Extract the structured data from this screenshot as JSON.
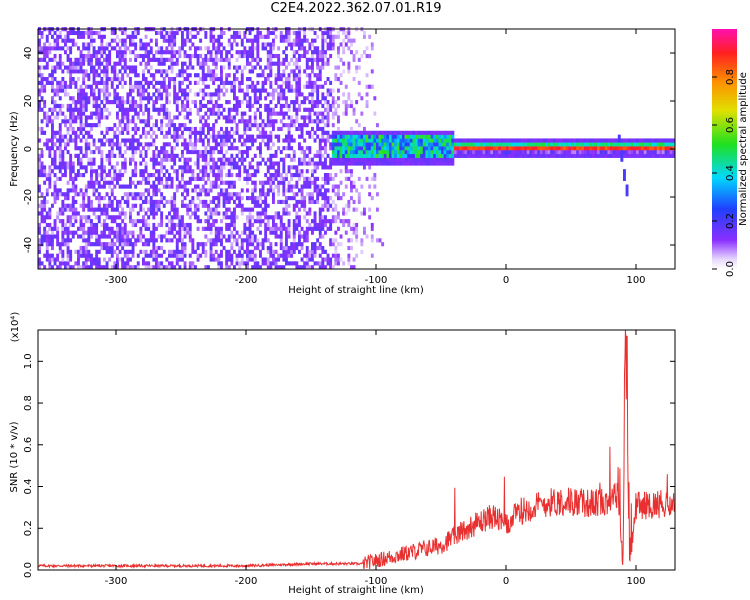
{
  "title": "C2E4.2022.362.07.01.R19",
  "colorbar": {
    "label": "Normalized spectral amplitude",
    "ticks": [
      "0.0",
      "0.2",
      "0.4",
      "0.6",
      "0.8"
    ]
  },
  "chart_data": [
    {
      "type": "heatmap",
      "xlabel": "Height of straight line (km)",
      "ylabel": "Frequency (Hz)",
      "xlim": [
        -360,
        130
      ],
      "ylim": [
        -50,
        50
      ],
      "xticks": [
        -300,
        -200,
        -100,
        0,
        100
      ],
      "yticks": [
        -40,
        -20,
        0,
        20,
        40
      ],
      "z_range": [
        0,
        1
      ],
      "features": {
        "noise_region_x": [
          -360,
          -95
        ],
        "carrier_frequency": 0,
        "carrier_start_x": -135,
        "spike_x": 88
      }
    },
    {
      "type": "line",
      "xlabel": "Height of straight line (km)",
      "ylabel": "SNR (10 * v/v)",
      "yunit_label": "(x10⁴)",
      "xlim": [
        -360,
        130
      ],
      "ylim": [
        0,
        1.15
      ],
      "xticks": [
        -300,
        -200,
        -100,
        0,
        100
      ],
      "yticks": [
        "0.0",
        "0.2",
        "0.4",
        "0.6",
        "0.8",
        "1.0"
      ],
      "color": "#e83030",
      "series": [
        {
          "x": [
            -360,
            -300,
            -250,
            -200,
            -150,
            -110,
            -90,
            -70,
            -50,
            -40,
            -30,
            -20,
            -10,
            0,
            10,
            20,
            30,
            40,
            50,
            60,
            70,
            80,
            86,
            90,
            92,
            95,
            100,
            110,
            120,
            130
          ],
          "y": [
            0.02,
            0.02,
            0.02,
            0.02,
            0.03,
            0.03,
            0.06,
            0.09,
            0.12,
            0.16,
            0.2,
            0.23,
            0.26,
            0.21,
            0.28,
            0.3,
            0.32,
            0.33,
            0.33,
            0.32,
            0.32,
            0.34,
            0.36,
            0.02,
            1.1,
            0.02,
            0.31,
            0.31,
            0.32,
            0.32
          ]
        }
      ]
    }
  ]
}
